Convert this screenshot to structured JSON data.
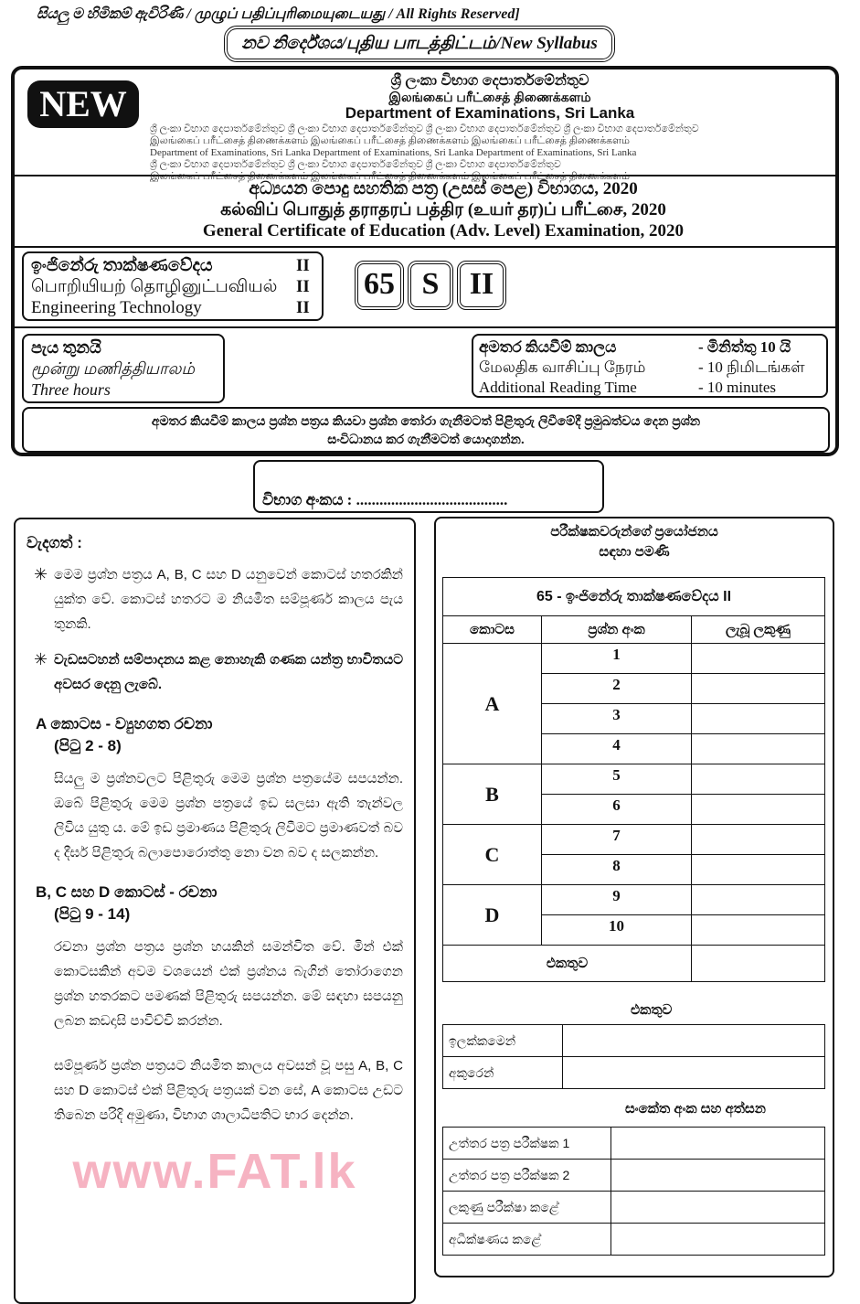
{
  "rights": "සියලු ම හිමිකම් ඇවිරිණි / முழுப் பதிப்புரிமையுடையது / All Rights Reserved]",
  "syllabus": "නව නිර්දේශය/புதிய பாடத்திட்டம்/New Syllabus",
  "banner": {
    "badge": "NEW",
    "title_si": "ශ්‍රී ලංකා විභාග දෙපාර්තමේන්තුව",
    "title_ta": "இலங்கைப் பரீட்சைத் திணைக்களம்",
    "title_en": "Department of Examinations, Sri Lanka",
    "background_lines": [
      "ශ්‍රී ලංකා විභාග දෙපාර්තමේන්තුව ශ්‍රී ලංකා විභාග දෙපාර්තමේන්තුව ශ්‍රී ලංකා විභාග දෙපාර්තමේන්තුව ශ්‍රී ලංකා විභාග දෙපාර්තමේන්තුව",
      "இலங்கைப் பரீட்சைத் திணைக்களம் இலங்கைப் பரீட்சைத் திணைக்களம் இலங்கைப் பரீட்சைத் திணைக்களம்",
      "Department of Examinations, Sri Lanka Department of Examinations, Sri Lanka Department of Examinations, Sri Lanka",
      "ශ්‍රී ලංකා විභාග දෙපාර්තමේන්තුව ශ්‍රී ලංකා විභාග දෙපාර්තමේන්තුව ශ්‍රී ලංකා විභාග දෙපාර්තමේන්තුව",
      "இலங்கைப் பரீட்சைத் திணைக்களம் இலங்கைப் பரீட்சைத் திணைக்களம் இலங்கைப் பரீட்சைத் திணைக்களம்"
    ]
  },
  "exam_titles": [
    "අධ්‍යයන පොදු සහතික පත්‍ර (උසස් පෙළ) විභාගය, 2020",
    "கல்விப் பொதுத் தராதரப் பத்திர (உயர் தர)ப் பரீட்சை, 2020",
    "General Certificate of Education (Adv. Level) Examination, 2020"
  ],
  "subject": [
    {
      "name": "ඉංජිනේරු තාක්ෂණවේදය",
      "paper": "II"
    },
    {
      "name": "பொறியியற் தொழினுட்பவியல்",
      "paper": "II"
    },
    {
      "name": "Engineering Technology",
      "paper": "II"
    }
  ],
  "codes": [
    "65",
    "S",
    "II"
  ],
  "duration": [
    "පැය තුනයි",
    "மூன்று மணித்தியாலம்",
    "Three hours"
  ],
  "reading_time": [
    {
      "label": "අමතර කියවීම් කාලය",
      "value": "- මිනිත්තු 10 යි"
    },
    {
      "label": "மேலதிக வாசிப்பு நேரம்",
      "value": "- 10 நிமிடங்கள்"
    },
    {
      "label": "Additional Reading Time",
      "value": "- 10 minutes"
    }
  ],
  "reading_note": [
    "අමතර කියවීම් කාලය ප්‍රශ්න පත්‍රය කියවා ප්‍රශ්න තෝරා ගැනීමටත් පිළිතුරු ලිවීමේදී ප්‍රමුඛත්වය දෙන ප්‍රශ්න",
    "සංවිධානය කර ගැනීමටත් යොදාගන්න."
  ],
  "index_label": "විභාග අංකය : .......................................",
  "instructions": {
    "heading": "වැදගත් :",
    "bullets": [
      "මෙම ප්‍රශ්න පත්‍රය A, B, C සහ D යනුවෙන් කොටස් හතරකින් යුක්ත වේ. කොටස් හතරට ම නියමිත සම්පූර්ණ කාලය පැය තුනකි.",
      "වැඩසටහන් සම්පාදනය කළ නොහැකි ගණක යන්ත්‍ර භාවිතයට අවසර දෙනු ලැබේ."
    ],
    "section_a_title": "A  කොටස - ව්‍යුහගත රචනා",
    "section_a_pages": "(පිටු 2 - 8)",
    "section_a_text": "සියලු ම ප්‍රශ්නවලට පිළිතුරු මෙම ප්‍රශ්න පත්‍රයේම සපයන්න. ඔබේ පිළිතුරු මෙම ප්‍රශ්න පත්‍රයේ ඉඩ සලසා ඇති තැන්වල ලිවිය යුතු ය. මේ ඉඩ ප්‍රමාණය පිළිතුරු ලිවීමට ප්‍රමාණවත් බව ද දීර්ඝ පිළිතුරු බලාපොරොත්තු නො වන බව ද සලකන්න.",
    "section_bcd_title": "B, C සහ D කොටස් - රචනා",
    "section_bcd_pages": "(පිටු 9 - 14)",
    "section_bcd_text": "රචනා ප්‍රශ්න පත්‍රය ප්‍රශ්න හයකින් සමන්විත වේ. මින් එක් කොටසකින් අවම වශයෙන් එක් ප්‍රශ්නය බැගින් තෝරාගෙන ප්‍රශ්න හතරකට පමණක් පිළිතුරු සපයන්න. මේ සඳහා සපයනු ලබන කඩදාසි පාවිච්චි කරන්න.",
    "final_text": "සම්පූර්ණ ප්‍රශ්න පත්‍රයට නියමිත කාලය අවසන් වූ පසු A, B, C සහ D කොටස් එක් පිළිතුරු පත්‍රයක් වන සේ, A කොටස උඩට තිබෙන පරිදි අමුණා, විභාග ශාලාධිපතිට භාර දෙන්න."
  },
  "examiner": {
    "heading": [
      "පරීක්ෂකවරුන්ගේ ප්‍රයෝජනය",
      "සඳහා පමණි"
    ],
    "table_title": "65 -  ඉංජිනේරු තාක්ෂණවේදය II",
    "columns": [
      "කොටස",
      "ප්‍රශ්න අංක",
      "ලැබූ ලකුණු"
    ],
    "parts": [
      {
        "part": "A",
        "questions": [
          "1",
          "2",
          "3",
          "4"
        ]
      },
      {
        "part": "B",
        "questions": [
          "5",
          "6"
        ]
      },
      {
        "part": "C",
        "questions": [
          "7",
          "8"
        ]
      },
      {
        "part": "D",
        "questions": [
          "9",
          "10"
        ]
      }
    ],
    "total_label": "එකතුව",
    "total_heading": "එකතුව",
    "total_rows": [
      "ඉලක්කමෙන්",
      "අකුරෙන්"
    ],
    "sign_heading": "සංකේත අංක සහ අත්සන",
    "sign_rows": [
      "උත්තර පත්‍ර පරීක්ෂක 1",
      "උත්තර පත්‍ර පරීක්ෂක 2",
      "ලකුණු පරීක්ෂා කළේ",
      "අධීක්ෂණය කළේ"
    ]
  },
  "watermark": "www.FAT.lk"
}
